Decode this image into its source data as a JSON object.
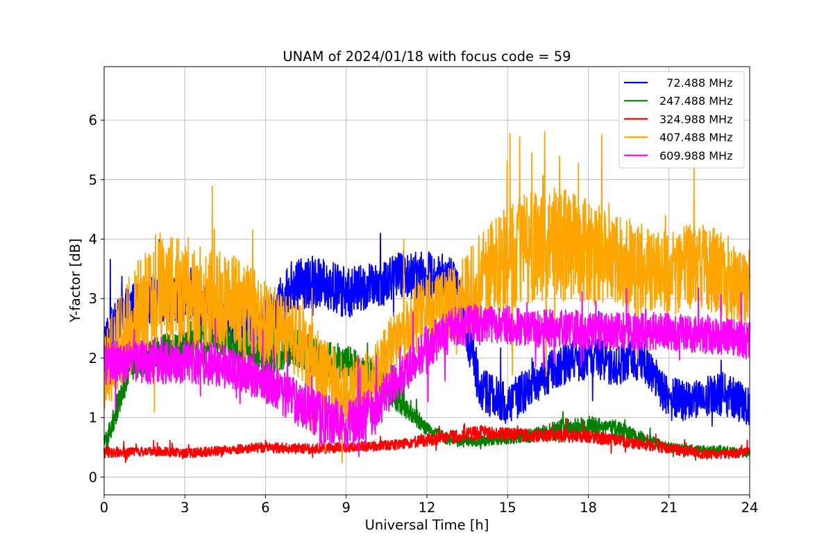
{
  "chart_data": {
    "type": "line",
    "title": "UNAM of 2024/01/18 with focus code = 59",
    "xlabel": "Universal Time [h]",
    "ylabel": "Y-factor [dB]",
    "xlim": [
      0,
      24
    ],
    "ylim": [
      -0.3,
      6.9
    ],
    "xticks": [
      0,
      3,
      6,
      9,
      12,
      15,
      18,
      21,
      24
    ],
    "yticks": [
      0,
      1,
      2,
      3,
      4,
      5,
      6
    ],
    "grid": true,
    "legend_position": "top-right",
    "x": [
      0,
      1,
      2,
      3,
      4,
      5,
      6,
      7,
      8,
      9,
      10,
      11,
      12,
      13,
      14,
      15,
      16,
      17,
      18,
      19,
      20,
      21,
      22,
      23,
      24
    ],
    "series": [
      {
        "name": "  72.488 MHz",
        "color": "#0000ff",
        "values": [
          2.2,
          2.9,
          3.0,
          3.0,
          2.8,
          2.6,
          2.6,
          3.2,
          3.3,
          3.1,
          3.2,
          3.4,
          3.4,
          3.3,
          1.5,
          1.2,
          1.6,
          1.9,
          2.0,
          1.9,
          2.0,
          1.3,
          1.3,
          1.4,
          1.2
        ],
        "noise": [
          0.65,
          0.45,
          0.5,
          0.5,
          0.5,
          0.5,
          0.5,
          0.55,
          0.55,
          0.55,
          0.5,
          0.5,
          0.5,
          0.55,
          0.5,
          0.45,
          0.45,
          0.45,
          0.45,
          0.45,
          0.45,
          0.45,
          0.45,
          0.45,
          0.45
        ]
      },
      {
        "name": "247.488 MHz",
        "color": "#008000",
        "values": [
          0.5,
          1.9,
          2.1,
          2.2,
          2.4,
          2.2,
          2.0,
          2.2,
          2.0,
          1.9,
          1.7,
          1.3,
          0.8,
          0.6,
          0.6,
          0.65,
          0.7,
          0.8,
          0.85,
          0.8,
          0.65,
          0.5,
          0.45,
          0.45,
          0.4
        ],
        "noise": [
          0.25,
          0.35,
          0.35,
          0.35,
          0.4,
          0.4,
          0.4,
          0.4,
          0.4,
          0.4,
          0.35,
          0.3,
          0.15,
          0.12,
          0.12,
          0.12,
          0.15,
          0.22,
          0.22,
          0.2,
          0.14,
          0.1,
          0.1,
          0.1,
          0.1
        ]
      },
      {
        "name": "324.988 MHz",
        "color": "#ff0000",
        "values": [
          0.42,
          0.42,
          0.43,
          0.4,
          0.43,
          0.47,
          0.5,
          0.48,
          0.48,
          0.5,
          0.52,
          0.55,
          0.62,
          0.68,
          0.75,
          0.72,
          0.7,
          0.7,
          0.68,
          0.62,
          0.55,
          0.48,
          0.4,
          0.38,
          0.42
        ],
        "noise": [
          0.12,
          0.1,
          0.1,
          0.1,
          0.1,
          0.1,
          0.11,
          0.11,
          0.11,
          0.11,
          0.11,
          0.11,
          0.13,
          0.14,
          0.15,
          0.14,
          0.14,
          0.14,
          0.14,
          0.13,
          0.12,
          0.11,
          0.11,
          0.1,
          0.1
        ]
      },
      {
        "name": "407.488 MHz",
        "color": "#ffa500",
        "values": [
          1.8,
          2.6,
          3.2,
          3.1,
          3.0,
          2.9,
          2.6,
          2.4,
          1.8,
          1.4,
          1.6,
          2.4,
          2.8,
          2.9,
          3.3,
          3.7,
          3.9,
          3.9,
          3.8,
          3.6,
          3.5,
          3.4,
          3.6,
          3.4,
          3.2
        ],
        "noise": [
          0.9,
          1.1,
          1.2,
          1.2,
          1.1,
          1.0,
          0.9,
          0.8,
          0.8,
          0.7,
          0.7,
          0.7,
          0.8,
          0.8,
          1.0,
          1.1,
          1.2,
          1.2,
          1.1,
          1.0,
          1.0,
          0.9,
          0.9,
          0.9,
          0.9
        ]
      },
      {
        "name": "609.988 MHz",
        "color": "#ff00ff",
        "values": [
          1.9,
          1.95,
          1.95,
          1.95,
          1.9,
          1.8,
          1.6,
          1.3,
          1.0,
          0.85,
          1.1,
          1.7,
          2.2,
          2.5,
          2.6,
          2.55,
          2.5,
          2.5,
          2.45,
          2.45,
          2.45,
          2.45,
          2.4,
          2.35,
          2.3
        ],
        "noise": [
          0.45,
          0.45,
          0.5,
          0.5,
          0.45,
          0.45,
          0.45,
          0.5,
          0.55,
          0.5,
          0.5,
          0.45,
          0.45,
          0.45,
          0.4,
          0.4,
          0.4,
          0.4,
          0.4,
          0.4,
          0.4,
          0.4,
          0.4,
          0.4,
          0.4
        ]
      }
    ]
  }
}
